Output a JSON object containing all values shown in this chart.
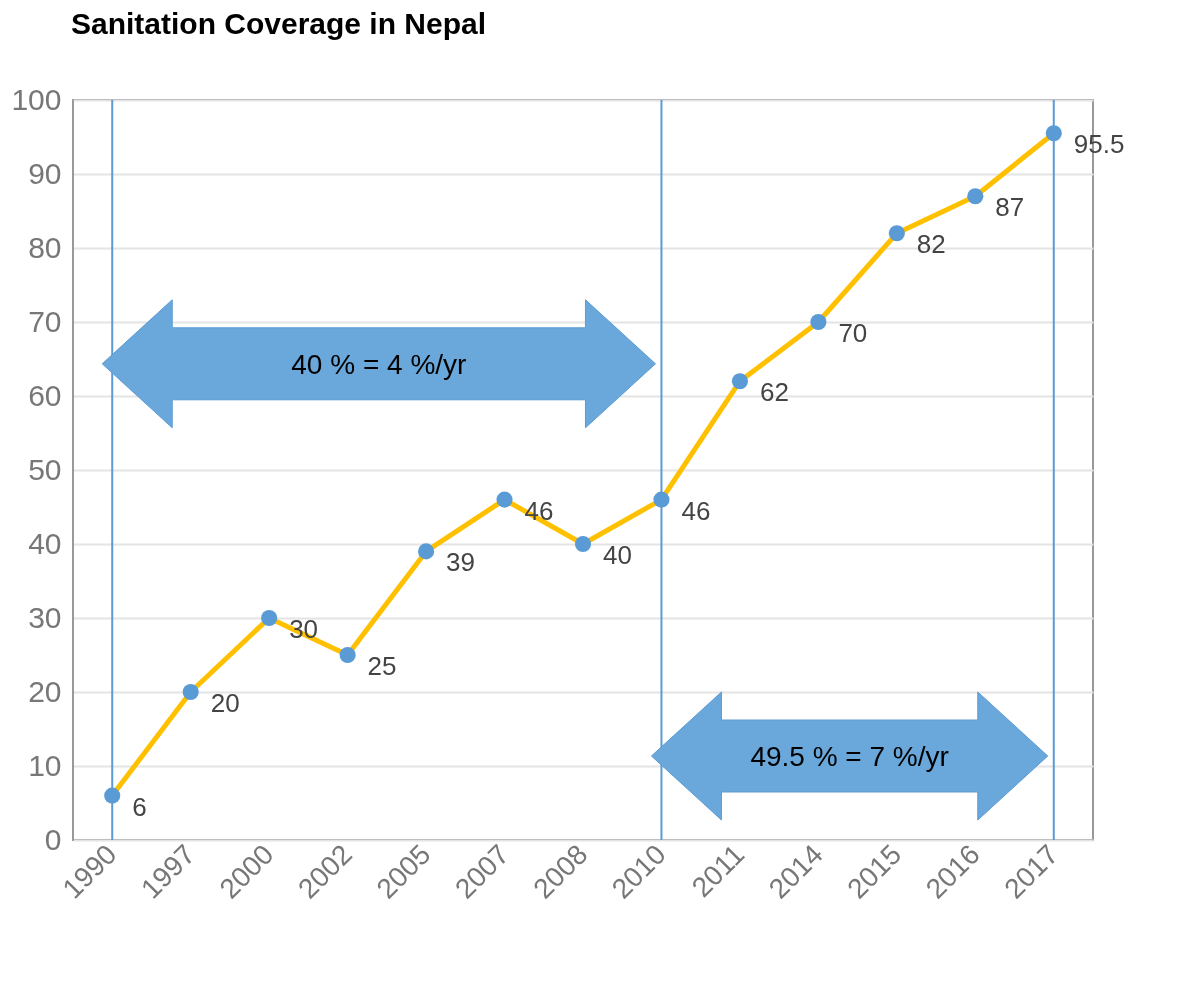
{
  "chart_data": {
    "type": "line",
    "title": "Sanitation Coverage in Nepal",
    "categories": [
      "1990",
      "1997",
      "2000",
      "2002",
      "2005",
      "2007",
      "2008",
      "2010",
      "2011",
      "2014",
      "2015",
      "2016",
      "2017"
    ],
    "values": [
      6,
      20,
      30,
      25,
      39,
      46,
      40,
      46,
      62,
      70,
      82,
      87,
      95.5
    ],
    "color": "#ffc000",
    "colors": [
      "#5b9bd5",
      "#5b9bd5",
      "#5b9bd5",
      "#5b9bd5",
      "#5b9bd5",
      "#5b9bd5",
      "#5b9bd5",
      "#5b9bd5",
      "#5b9bd5",
      "#5b9bd5",
      "#5b9bd5",
      "#5b9bd5",
      "#5b9bd5"
    ],
    "ylim": [
      0,
      100
    ],
    "yticks": [
      0,
      10,
      20,
      30,
      40,
      50,
      60,
      70,
      80,
      90,
      100
    ],
    "grid": "y",
    "marker": "circle",
    "data_labels": true,
    "ref_lines": [
      {
        "axis": "x",
        "value": "1990",
        "color": "#5b9bd5"
      },
      {
        "axis": "x",
        "value": "2010",
        "color": "#5b9bd5"
      },
      {
        "axis": "x",
        "value": "2017",
        "color": "#5b9bd5"
      }
    ],
    "annotations": [
      "40 % = 4 %/yr",
      "49.5 % = 7 %/yr"
    ]
  }
}
